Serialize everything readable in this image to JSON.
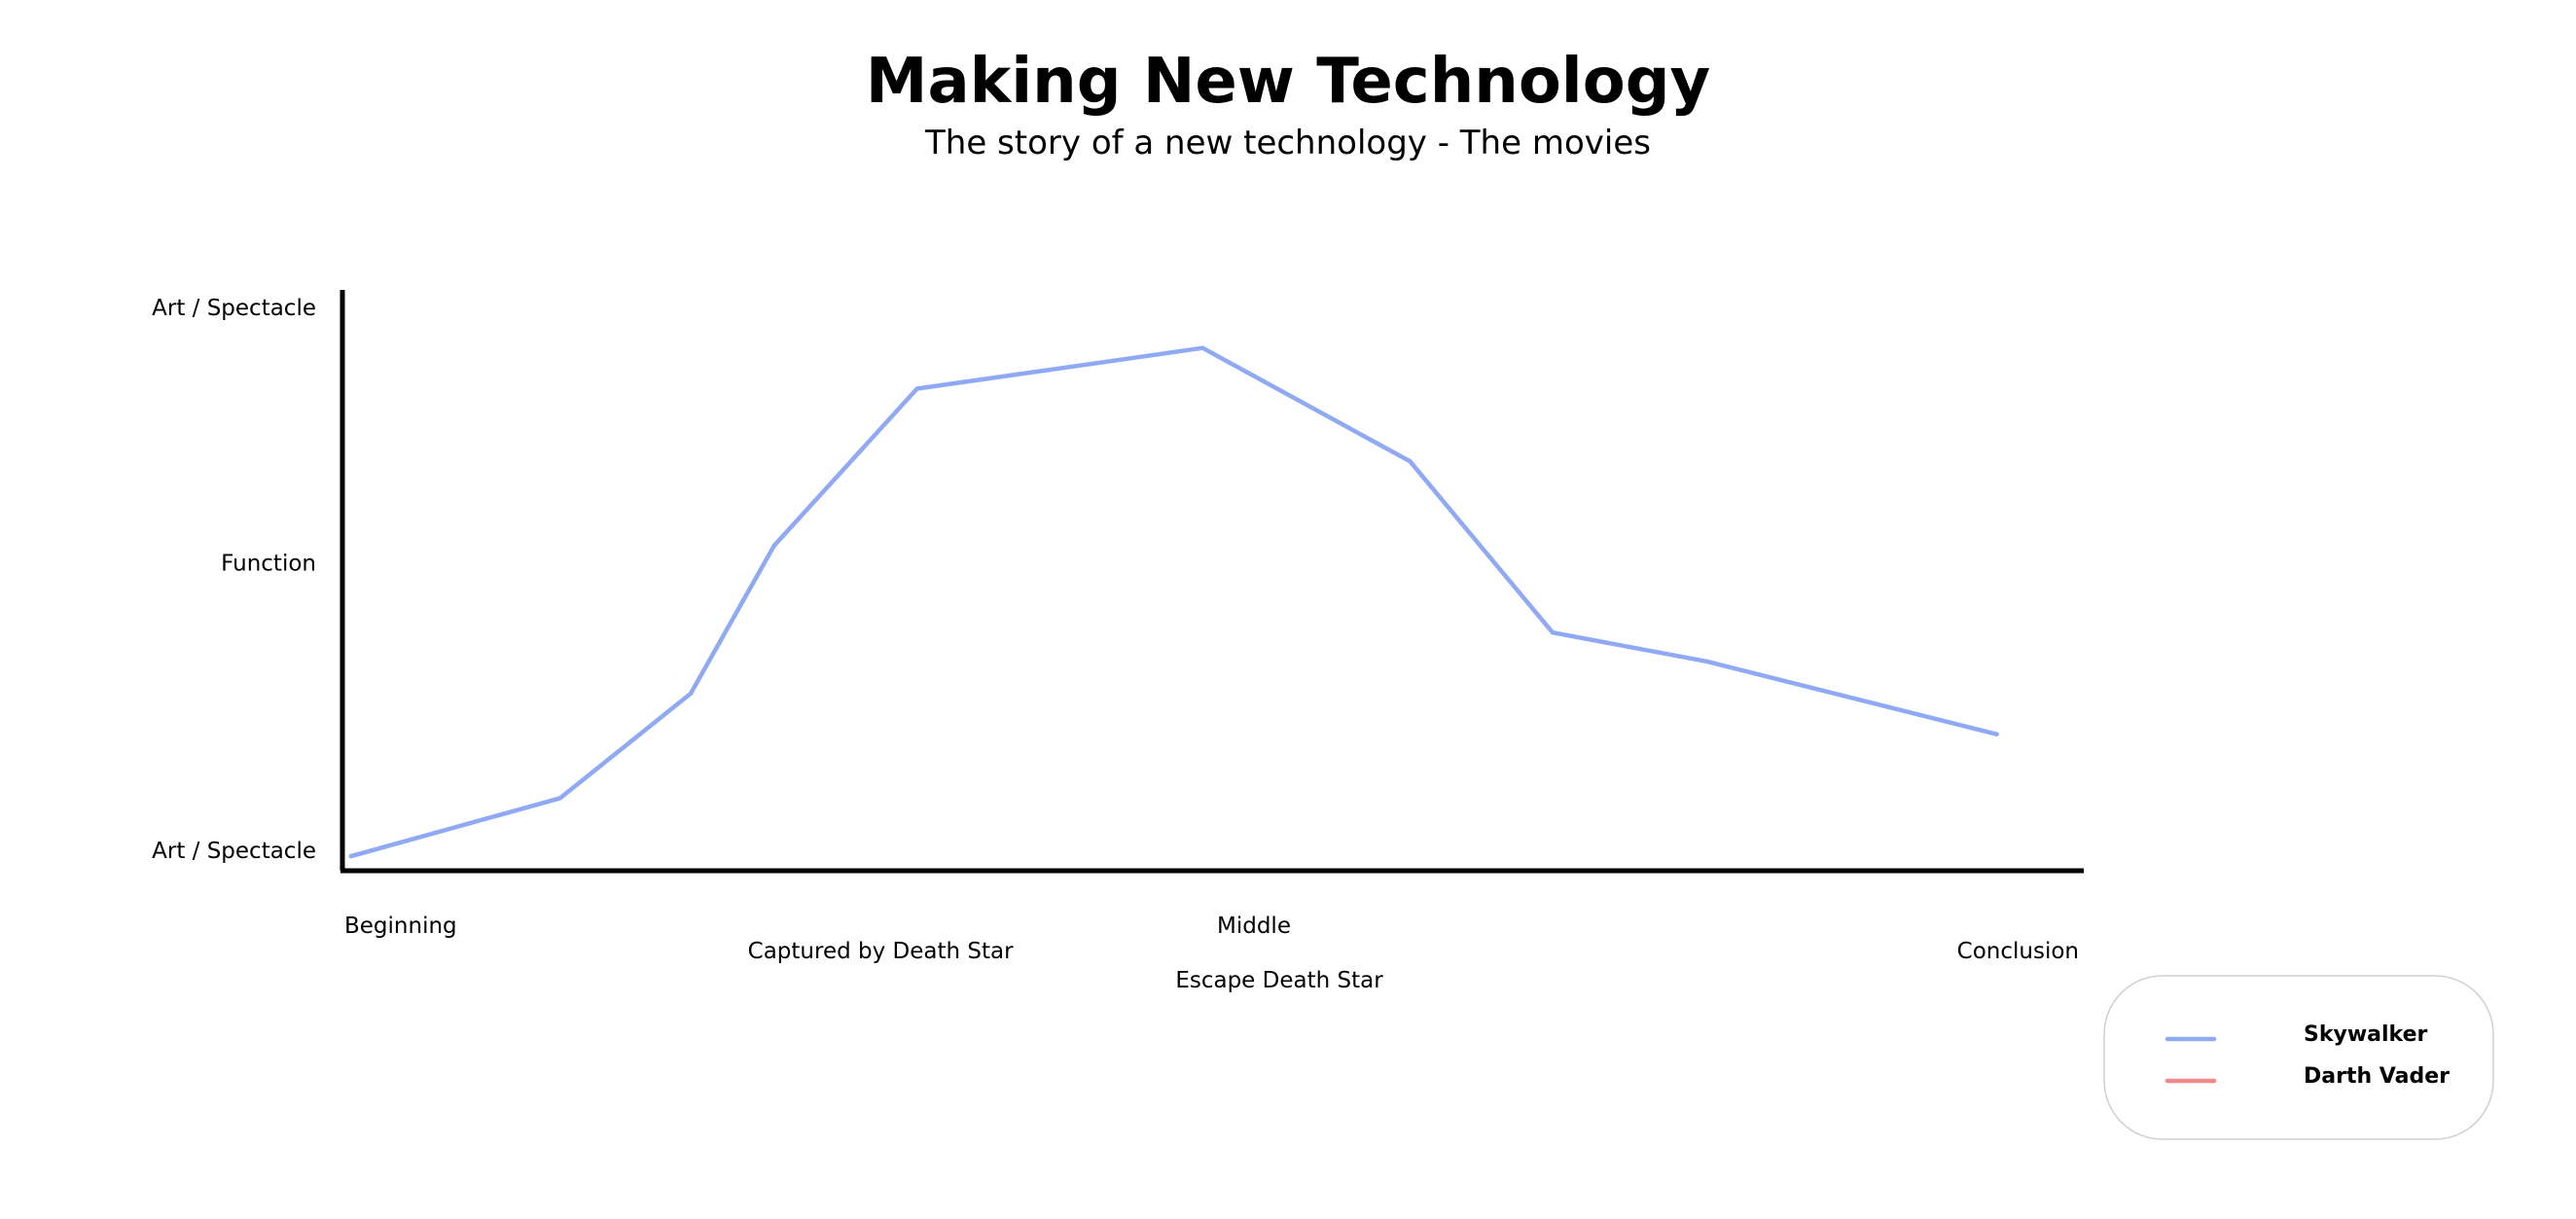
{
  "chart_data": {
    "type": "line",
    "title": "Making New Technology",
    "subtitle": "The story of a new technology - The movies",
    "xlabel": "",
    "ylabel": "",
    "xlim": [
      0,
      100
    ],
    "ylim": [
      0,
      100
    ],
    "grid": false,
    "legend_position": "bottom-right",
    "y_ticks": [
      {
        "value": 97,
        "label": "Art / Spectacle"
      },
      {
        "value": 53,
        "label": "Function"
      },
      {
        "value": 3.5,
        "label": "Art / Spectacle"
      }
    ],
    "x_ticks": [
      {
        "value": 0,
        "label": "Beginning",
        "row": 0
      },
      {
        "value": 30.9,
        "label": "Captured by Death Star",
        "row": 1
      },
      {
        "value": 50,
        "label": "Middle",
        "row": 0
      },
      {
        "value": 53.8,
        "label": "Escape Death Star",
        "row": 2
      },
      {
        "value": 100,
        "label": "Conclusion",
        "row": 1
      }
    ],
    "series": [
      {
        "name": "Skywalker",
        "color": "#8fa9f5",
        "points": [
          {
            "x": 0.5,
            "y": 2.5
          },
          {
            "x": 12.5,
            "y": 12.5
          },
          {
            "x": 20,
            "y": 30.5
          },
          {
            "x": 24.8,
            "y": 56
          },
          {
            "x": 33,
            "y": 83
          },
          {
            "x": 49.4,
            "y": 90
          },
          {
            "x": 61.3,
            "y": 70.5
          },
          {
            "x": 69.5,
            "y": 41
          },
          {
            "x": 78.4,
            "y": 36
          },
          {
            "x": 95,
            "y": 23.5
          }
        ]
      },
      {
        "name": "Darth Vader",
        "color": "#f08a8a",
        "points": []
      }
    ]
  }
}
